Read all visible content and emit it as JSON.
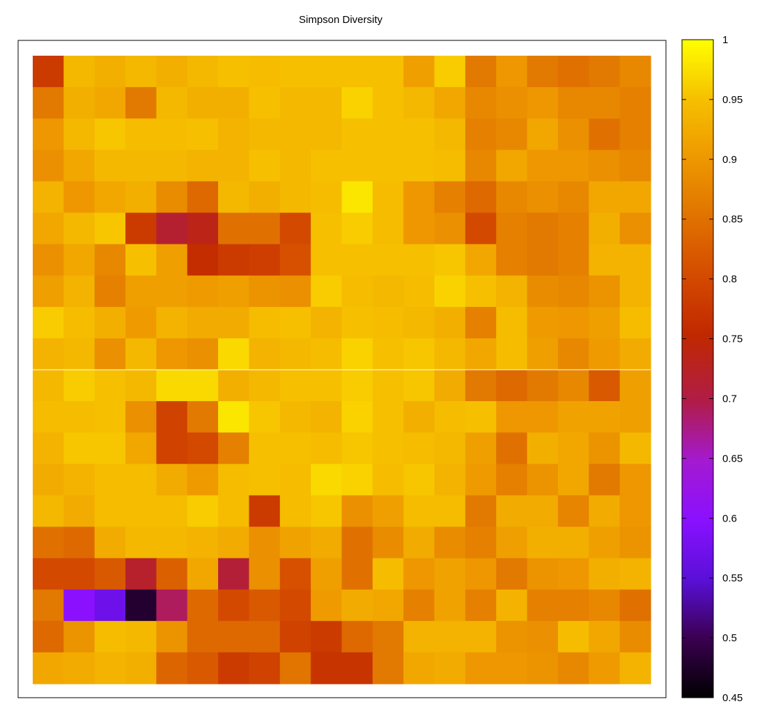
{
  "chart_data": {
    "type": "heatmap",
    "title": "Simpson Diversity",
    "xlabel": "",
    "ylabel": "",
    "grid": false,
    "legend": "colorbar-right",
    "colorscale": {
      "min": 0.45,
      "max": 1,
      "ticks": [
        "0.45",
        "0.5",
        "0.55",
        "0.6",
        "0.65",
        "0.7",
        "0.75",
        "0.8",
        "0.85",
        "0.9",
        "0.95",
        "1"
      ],
      "palette": "black-purple-red-orange-yellow"
    },
    "rows": 20,
    "cols": 20,
    "values": [
      [
        0.78,
        0.94,
        0.93,
        0.94,
        0.93,
        0.94,
        0.95,
        0.945,
        0.95,
        0.95,
        0.95,
        0.95,
        0.91,
        0.96,
        0.86,
        0.9,
        0.86,
        0.85,
        0.86,
        0.88
      ],
      [
        0.86,
        0.93,
        0.92,
        0.86,
        0.94,
        0.93,
        0.93,
        0.95,
        0.94,
        0.94,
        0.965,
        0.95,
        0.94,
        0.92,
        0.88,
        0.89,
        0.9,
        0.88,
        0.88,
        0.87
      ],
      [
        0.9,
        0.94,
        0.955,
        0.945,
        0.945,
        0.95,
        0.935,
        0.94,
        0.94,
        0.94,
        0.95,
        0.95,
        0.95,
        0.94,
        0.87,
        0.88,
        0.92,
        0.89,
        0.85,
        0.87
      ],
      [
        0.89,
        0.92,
        0.94,
        0.94,
        0.94,
        0.935,
        0.935,
        0.95,
        0.94,
        0.95,
        0.95,
        0.95,
        0.95,
        0.945,
        0.88,
        0.92,
        0.9,
        0.9,
        0.89,
        0.88
      ],
      [
        0.935,
        0.9,
        0.92,
        0.93,
        0.885,
        0.84,
        0.94,
        0.93,
        0.94,
        0.945,
        0.98,
        0.945,
        0.9,
        0.87,
        0.84,
        0.88,
        0.89,
        0.88,
        0.92,
        0.92
      ],
      [
        0.92,
        0.94,
        0.955,
        0.78,
        0.715,
        0.735,
        0.85,
        0.85,
        0.8,
        0.95,
        0.96,
        0.945,
        0.9,
        0.89,
        0.8,
        0.87,
        0.86,
        0.87,
        0.93,
        0.89
      ],
      [
        0.89,
        0.92,
        0.88,
        0.95,
        0.91,
        0.76,
        0.78,
        0.785,
        0.81,
        0.95,
        0.95,
        0.95,
        0.95,
        0.955,
        0.92,
        0.87,
        0.86,
        0.87,
        0.935,
        0.935
      ],
      [
        0.91,
        0.935,
        0.87,
        0.91,
        0.91,
        0.905,
        0.91,
        0.895,
        0.89,
        0.96,
        0.945,
        0.94,
        0.945,
        0.965,
        0.95,
        0.935,
        0.885,
        0.88,
        0.895,
        0.935
      ],
      [
        0.96,
        0.945,
        0.93,
        0.905,
        0.935,
        0.925,
        0.925,
        0.945,
        0.95,
        0.935,
        0.95,
        0.945,
        0.94,
        0.93,
        0.87,
        0.945,
        0.905,
        0.9,
        0.91,
        0.945
      ],
      [
        0.935,
        0.94,
        0.89,
        0.94,
        0.9,
        0.89,
        0.97,
        0.935,
        0.94,
        0.945,
        0.965,
        0.95,
        0.955,
        0.94,
        0.92,
        0.945,
        0.91,
        0.88,
        0.905,
        0.925
      ],
      [
        0.94,
        0.96,
        0.95,
        0.94,
        0.97,
        0.97,
        0.93,
        0.94,
        0.95,
        0.95,
        0.96,
        0.95,
        0.955,
        0.925,
        0.86,
        0.84,
        0.86,
        0.88,
        0.82,
        0.91
      ],
      [
        0.945,
        0.945,
        0.95,
        0.89,
        0.79,
        0.86,
        0.98,
        0.955,
        0.94,
        0.935,
        0.965,
        0.95,
        0.93,
        0.945,
        0.95,
        0.9,
        0.9,
        0.915,
        0.915,
        0.91
      ],
      [
        0.935,
        0.955,
        0.955,
        0.92,
        0.79,
        0.8,
        0.87,
        0.95,
        0.95,
        0.945,
        0.955,
        0.95,
        0.945,
        0.94,
        0.91,
        0.85,
        0.93,
        0.92,
        0.895,
        0.94
      ],
      [
        0.925,
        0.935,
        0.945,
        0.945,
        0.925,
        0.905,
        0.945,
        0.95,
        0.945,
        0.97,
        0.965,
        0.945,
        0.955,
        0.935,
        0.905,
        0.87,
        0.895,
        0.92,
        0.86,
        0.9
      ],
      [
        0.94,
        0.925,
        0.945,
        0.945,
        0.945,
        0.96,
        0.945,
        0.78,
        0.945,
        0.955,
        0.89,
        0.91,
        0.945,
        0.945,
        0.86,
        0.925,
        0.925,
        0.875,
        0.925,
        0.9
      ],
      [
        0.85,
        0.84,
        0.925,
        0.94,
        0.94,
        0.935,
        0.925,
        0.89,
        0.915,
        0.925,
        0.85,
        0.885,
        0.925,
        0.885,
        0.87,
        0.91,
        0.93,
        0.93,
        0.91,
        0.895
      ],
      [
        0.8,
        0.8,
        0.82,
        0.72,
        0.83,
        0.92,
        0.71,
        0.89,
        0.81,
        0.91,
        0.85,
        0.945,
        0.9,
        0.915,
        0.9,
        0.86,
        0.895,
        0.9,
        0.93,
        0.935
      ],
      [
        0.86,
        0.6,
        0.57,
        0.48,
        0.69,
        0.84,
        0.8,
        0.82,
        0.8,
        0.905,
        0.925,
        0.92,
        0.87,
        0.915,
        0.87,
        0.935,
        0.87,
        0.87,
        0.88,
        0.85
      ],
      [
        0.84,
        0.895,
        0.945,
        0.94,
        0.895,
        0.84,
        0.84,
        0.84,
        0.79,
        0.78,
        0.84,
        0.86,
        0.935,
        0.935,
        0.935,
        0.895,
        0.89,
        0.945,
        0.92,
        0.885
      ],
      [
        0.92,
        0.925,
        0.935,
        0.93,
        0.835,
        0.82,
        0.78,
        0.79,
        0.855,
        0.77,
        0.77,
        0.86,
        0.92,
        0.925,
        0.9,
        0.9,
        0.895,
        0.88,
        0.905,
        0.935
      ]
    ]
  }
}
